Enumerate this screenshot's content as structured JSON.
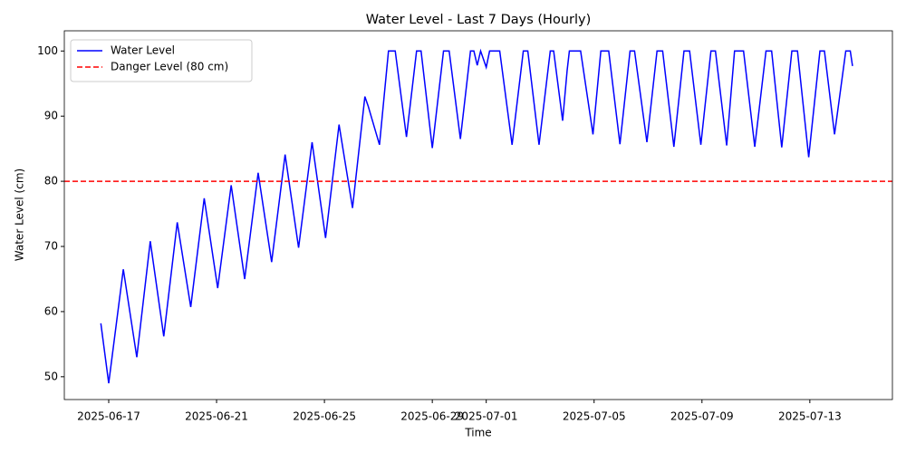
{
  "chart_data": {
    "type": "line",
    "title": "Water Level - Last 7 Days (Hourly)",
    "x_label": "Time",
    "y_label": "Water Level (cm)",
    "x": [
      "2025-06-16 17:00",
      "2025-06-17 00:00",
      "2025-06-17 13:00",
      "2025-06-18 01:00",
      "2025-06-18 13:00",
      "2025-06-19 01:00",
      "2025-06-19 13:00",
      "2025-06-20 01:00",
      "2025-06-20 13:00",
      "2025-06-21 01:00",
      "2025-06-21 13:00",
      "2025-06-22 01:00",
      "2025-06-22 13:00",
      "2025-06-23 01:00",
      "2025-06-23 13:00",
      "2025-06-24 01:00",
      "2025-06-24 13:00",
      "2025-06-25 01:00",
      "2025-06-25 13:00",
      "2025-06-26 01:00",
      "2025-06-26 12:00",
      "2025-06-26 15:00",
      "2025-06-27 01:00",
      "2025-06-27 09:00",
      "2025-06-27 15:00",
      "2025-06-28 01:00",
      "2025-06-28 10:00",
      "2025-06-28 14:00",
      "2025-06-29 00:00",
      "2025-06-29 10:00",
      "2025-06-29 15:00",
      "2025-06-30 01:00",
      "2025-06-30 10:00",
      "2025-06-30 13:00",
      "2025-06-30 16:00",
      "2025-06-30 19:00",
      "2025-07-01 00:00",
      "2025-07-01 03:00",
      "2025-07-01 12:00",
      "2025-07-01 23:00",
      "2025-07-02 09:00",
      "2025-07-02 13:00",
      "2025-07-02 23:00",
      "2025-07-03 09:00",
      "2025-07-03 12:00",
      "2025-07-03 20:00",
      "2025-07-04 00:00",
      "2025-07-04 02:00",
      "2025-07-04 12:00",
      "2025-07-04 23:00",
      "2025-07-05 06:00",
      "2025-07-05 13:00",
      "2025-07-05 23:00",
      "2025-07-06 08:00",
      "2025-07-06 12:00",
      "2025-07-06 23:00",
      "2025-07-07 08:00",
      "2025-07-07 13:00",
      "2025-07-07 23:00",
      "2025-07-08 08:00",
      "2025-07-08 13:00",
      "2025-07-08 23:00",
      "2025-07-09 08:00",
      "2025-07-09 12:00",
      "2025-07-09 22:00",
      "2025-07-10 05:00",
      "2025-07-10 13:00",
      "2025-07-10 23:00",
      "2025-07-11 09:00",
      "2025-07-11 14:00",
      "2025-07-11 23:00",
      "2025-07-12 08:00",
      "2025-07-12 13:00",
      "2025-07-12 23:00",
      "2025-07-13 09:00",
      "2025-07-13 13:00",
      "2025-07-13 22:00",
      "2025-07-14 08:00",
      "2025-07-14 12:00",
      "2025-07-14 14:00"
    ],
    "series": [
      {
        "name": "Water Level",
        "color": "#0000ff",
        "values": [
          58.2,
          49.0,
          66.5,
          53.0,
          70.8,
          56.2,
          73.7,
          60.7,
          77.4,
          63.6,
          79.4,
          65.0,
          81.3,
          67.6,
          84.1,
          69.8,
          86.0,
          71.3,
          88.7,
          75.9,
          93.0,
          91.5,
          85.6,
          100,
          100,
          86.8,
          100,
          100,
          85.1,
          100,
          100,
          86.5,
          100,
          100,
          97.8,
          100,
          97.5,
          100,
          100,
          85.6,
          100,
          100,
          85.6,
          100,
          100,
          89.3,
          97.0,
          100,
          100,
          87.2,
          100,
          100,
          85.7,
          100,
          100,
          86.0,
          100,
          100,
          85.3,
          100,
          100,
          85.6,
          100,
          100,
          85.5,
          100,
          100,
          85.3,
          100,
          100,
          85.2,
          100,
          100,
          83.7,
          100,
          100,
          87.2,
          100,
          100,
          97.7
        ]
      }
    ],
    "reference_lines": [
      {
        "name": "Danger Level (80 cm)",
        "value": 80,
        "color": "#ff0000",
        "style": "dashed"
      }
    ],
    "xlim": [
      "2025-06-15 08:30",
      "2025-07-16 01:30"
    ],
    "xticks": [
      "2025-06-17",
      "2025-06-21",
      "2025-06-25",
      "2025-06-29",
      "2025-07-01",
      "2025-07-05",
      "2025-07-09",
      "2025-07-13"
    ],
    "ylim": [
      46.5,
      103.1
    ],
    "yticks": [
      50,
      60,
      70,
      80,
      90,
      100
    ],
    "grid": false,
    "legend": "upper left"
  }
}
